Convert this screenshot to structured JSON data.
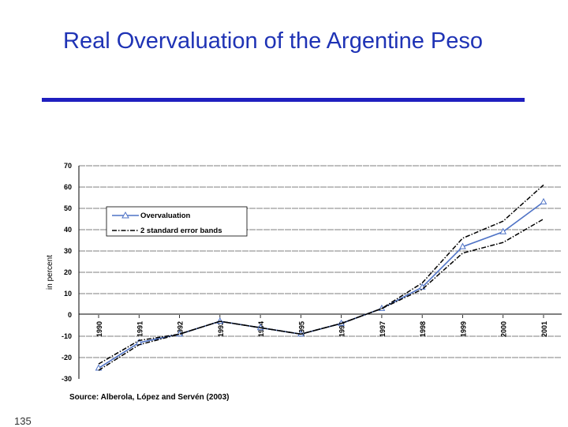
{
  "slide": {
    "title": "Real Overvaluation of the Argentine Peso",
    "page_number": "135",
    "accent_color": "#1f1fbf"
  },
  "chart_data": {
    "type": "line",
    "title": "Real Overvaluation of the Argentine Peso",
    "xlabel": "",
    "ylabel": "in percent",
    "x": [
      "1990",
      "1991",
      "1992",
      "1993",
      "1994",
      "1995",
      "1996",
      "1997",
      "1998",
      "1999",
      "2000",
      "2001"
    ],
    "ylim": [
      -30,
      70
    ],
    "yticks": [
      -30,
      -20,
      -10,
      0,
      10,
      20,
      30,
      40,
      50,
      60,
      70
    ],
    "grid": true,
    "legend_position": "upper-left",
    "series": [
      {
        "name": "Overvaluation",
        "color": "#4f73c6",
        "style": "solid",
        "marker": "triangle",
        "values": [
          -25,
          -13,
          -9,
          -3,
          -6,
          -9,
          -4,
          3,
          13,
          32,
          39,
          53
        ]
      },
      {
        "name": "2 standard error bands",
        "color": "#000000",
        "style": "dashdot",
        "marker": "none",
        "values": [
          -23,
          -12,
          -9,
          -3,
          -6,
          -9,
          -4,
          3,
          15,
          36,
          44,
          61
        ]
      },
      {
        "name": "2 standard error bands (lower)",
        "color": "#000000",
        "style": "dashdot",
        "marker": "none",
        "legend": false,
        "values": [
          -26,
          -14,
          -9,
          -3,
          -6,
          -9,
          -4,
          3,
          12,
          29,
          34,
          45
        ]
      }
    ],
    "source": "Source: Alberola, López and Servén (2003)"
  }
}
